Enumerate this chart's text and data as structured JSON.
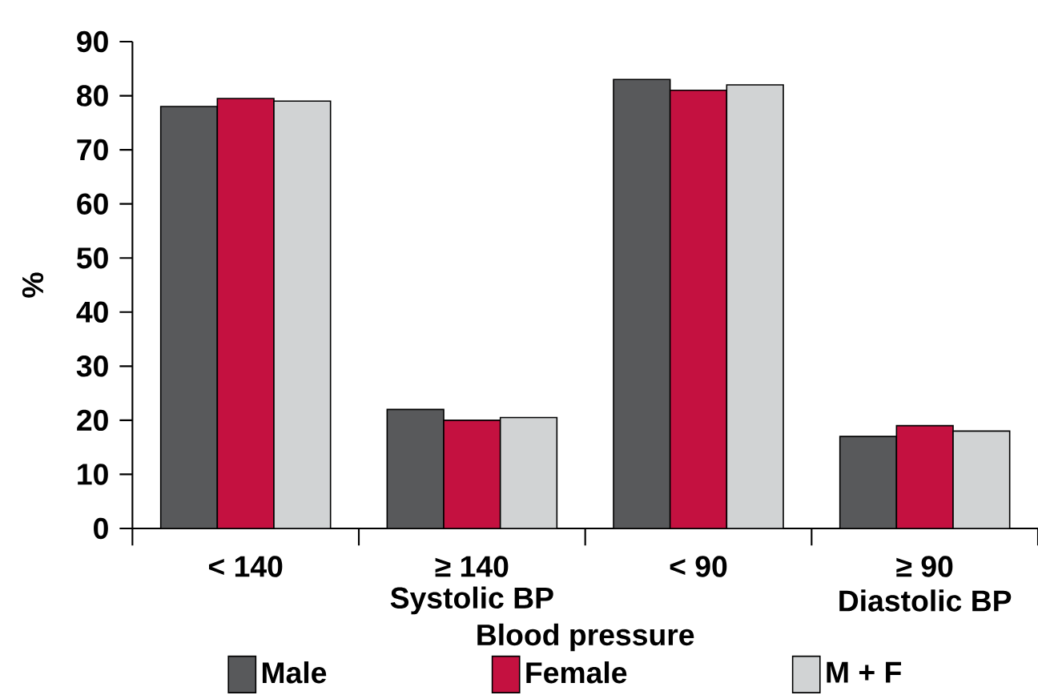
{
  "chart_data": {
    "type": "bar",
    "ylabel": "%",
    "xlabel": "Blood pressure",
    "categories": [
      "< 140",
      "≥ 140",
      "< 90",
      "≥ 90"
    ],
    "series": [
      {
        "name": "Male",
        "color": "#58595b",
        "values": [
          78,
          22,
          83,
          17
        ]
      },
      {
        "name": "Female",
        "color": "#c41140",
        "values": [
          79.5,
          20,
          81,
          19
        ]
      },
      {
        "name": "M + F",
        "color": "#d1d3d4",
        "values": [
          79,
          20.5,
          82,
          18
        ]
      }
    ],
    "ylim": [
      0,
      90
    ],
    "yticks": [
      0,
      10,
      20,
      30,
      40,
      50,
      60,
      70,
      80,
      90
    ],
    "annotations": [
      "Systolic BP",
      "Diastolic BP"
    ],
    "legend": "bottom"
  }
}
